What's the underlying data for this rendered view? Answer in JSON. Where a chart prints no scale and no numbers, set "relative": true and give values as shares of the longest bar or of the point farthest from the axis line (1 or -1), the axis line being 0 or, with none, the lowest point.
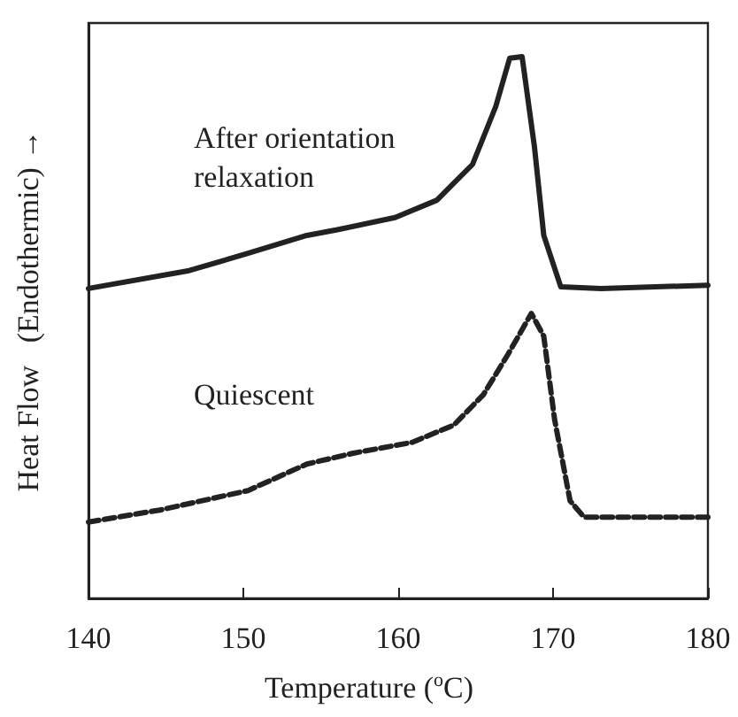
{
  "chart_data": {
    "type": "line",
    "relative": true,
    "xlabel": "Temperature ($^{o}$C)",
    "ylabel": "Heat Flow   (Endothermic) →",
    "xlim": [
      140,
      180
    ],
    "xticks": [
      140,
      150,
      160,
      170,
      180
    ],
    "grid": false,
    "legend": false,
    "marker": "none",
    "series": [
      {
        "name": "After orientation\nrelaxation",
        "color": "#222222",
        "line_style": "solid",
        "x": [
          140,
          146.5,
          150.3,
          154.1,
          156,
          159.8,
          162.5,
          164.8,
          166.3,
          167.2,
          168,
          168.8,
          169.4,
          170.5,
          173.1,
          180
        ],
        "values": [
          0.572,
          0.605,
          0.637,
          0.67,
          0.68,
          0.703,
          0.735,
          0.801,
          0.908,
          0.997,
          1,
          0.833,
          0.67,
          0.575,
          0.572,
          0.578
        ]
      },
      {
        "name": "Quiescent",
        "color": "#222222",
        "line_style": "dashed",
        "x": [
          140,
          144.6,
          150.3,
          154.1,
          157.1,
          160.9,
          163.6,
          165.5,
          167.1,
          168.6,
          169.4,
          170.1,
          171.1,
          172,
          180
        ],
        "values": [
          0.141,
          0.163,
          0.199,
          0.248,
          0.268,
          0.288,
          0.32,
          0.376,
          0.451,
          0.526,
          0.484,
          0.33,
          0.18,
          0.15,
          0.15
        ]
      }
    ]
  }
}
